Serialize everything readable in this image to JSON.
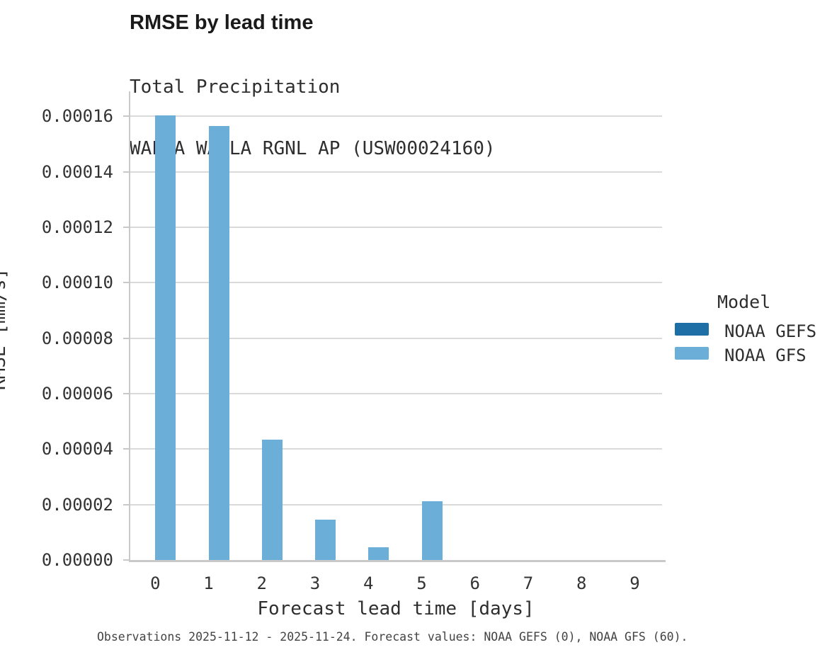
{
  "header": {
    "title": "RMSE by lead time",
    "subtitle_line1": "Total Precipitation",
    "subtitle_line2": "WALLA WALLA RGNL AP (USW00024160)"
  },
  "chart_data": {
    "type": "bar",
    "title": "RMSE by lead time",
    "subtitle": [
      "Total Precipitation",
      "WALLA WALLA RGNL AP (USW00024160)"
    ],
    "xlabel": "Forecast lead time [days]",
    "ylabel": "RMSE [mm/s]",
    "categories": [
      "0",
      "1",
      "2",
      "3",
      "4",
      "5",
      "6",
      "7",
      "8",
      "9"
    ],
    "series": [
      {
        "name": "NOAA GEFS",
        "color": "#1d6fa5",
        "values": [
          0,
          0,
          0,
          0,
          0,
          0,
          0,
          0,
          0,
          0
        ]
      },
      {
        "name": "NOAA GFS",
        "color": "#6bafd8",
        "values": [
          0.0001602,
          0.0001566,
          4.34e-05,
          1.45e-05,
          4.6e-06,
          2.12e-05,
          0,
          0,
          0,
          0
        ]
      }
    ],
    "ylim": [
      0,
      0.000169
    ],
    "yticks": [
      0,
      2e-05,
      4e-05,
      6e-05,
      8e-05,
      0.0001,
      0.00012,
      0.00014,
      0.00016
    ],
    "ytick_labels": [
      "0.00000",
      "0.00002",
      "0.00004",
      "0.00006",
      "0.00008",
      "0.00010",
      "0.00012",
      "0.00014",
      "0.00016"
    ],
    "legend_title": "Model",
    "legend_position": "right",
    "grid": "horizontal"
  },
  "footer": {
    "text": "Observations 2025-11-12 - 2025-11-24. Forecast values: NOAA GEFS (0), NOAA GFS (60)."
  }
}
